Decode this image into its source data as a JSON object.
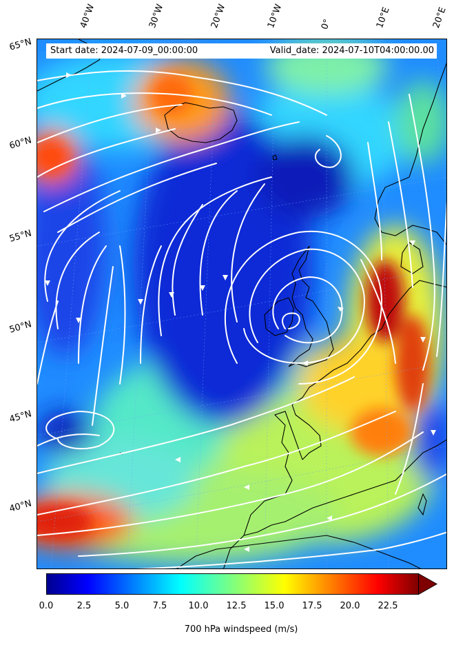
{
  "info": {
    "start_date": "Start date: 2024-07-09_00:00:00",
    "valid_date": "Valid_date: 2024-07-10T04:00:00.00"
  },
  "longitude_labels": [
    "40°W",
    "30°W",
    "20°W",
    "10°W",
    "0°",
    "10°E",
    "20°E"
  ],
  "latitude_labels": [
    "65°N",
    "60°N",
    "55°N",
    "50°N",
    "45°N",
    "40°N"
  ],
  "colorbar": {
    "label": "700 hPa windspeed (m/s)",
    "ticks": [
      "0.0",
      "2.5",
      "5.0",
      "7.5",
      "10.0",
      "12.5",
      "15.0",
      "17.5",
      "20.0",
      "22.5"
    ],
    "range": [
      0,
      25
    ],
    "extend": "max",
    "colormap": "jet",
    "colors": [
      "#00008f",
      "#0000ff",
      "#007fff",
      "#00ffff",
      "#7fff7f",
      "#ffff00",
      "#ff7f00",
      "#ff0000",
      "#7f0000"
    ]
  },
  "map": {
    "variable": "700 hPa windspeed",
    "units": "m/s",
    "features": [
      "coastlines",
      "streamlines",
      "graticule"
    ],
    "streamline_color": "#ffffff",
    "coastline_color": "#000000"
  }
}
